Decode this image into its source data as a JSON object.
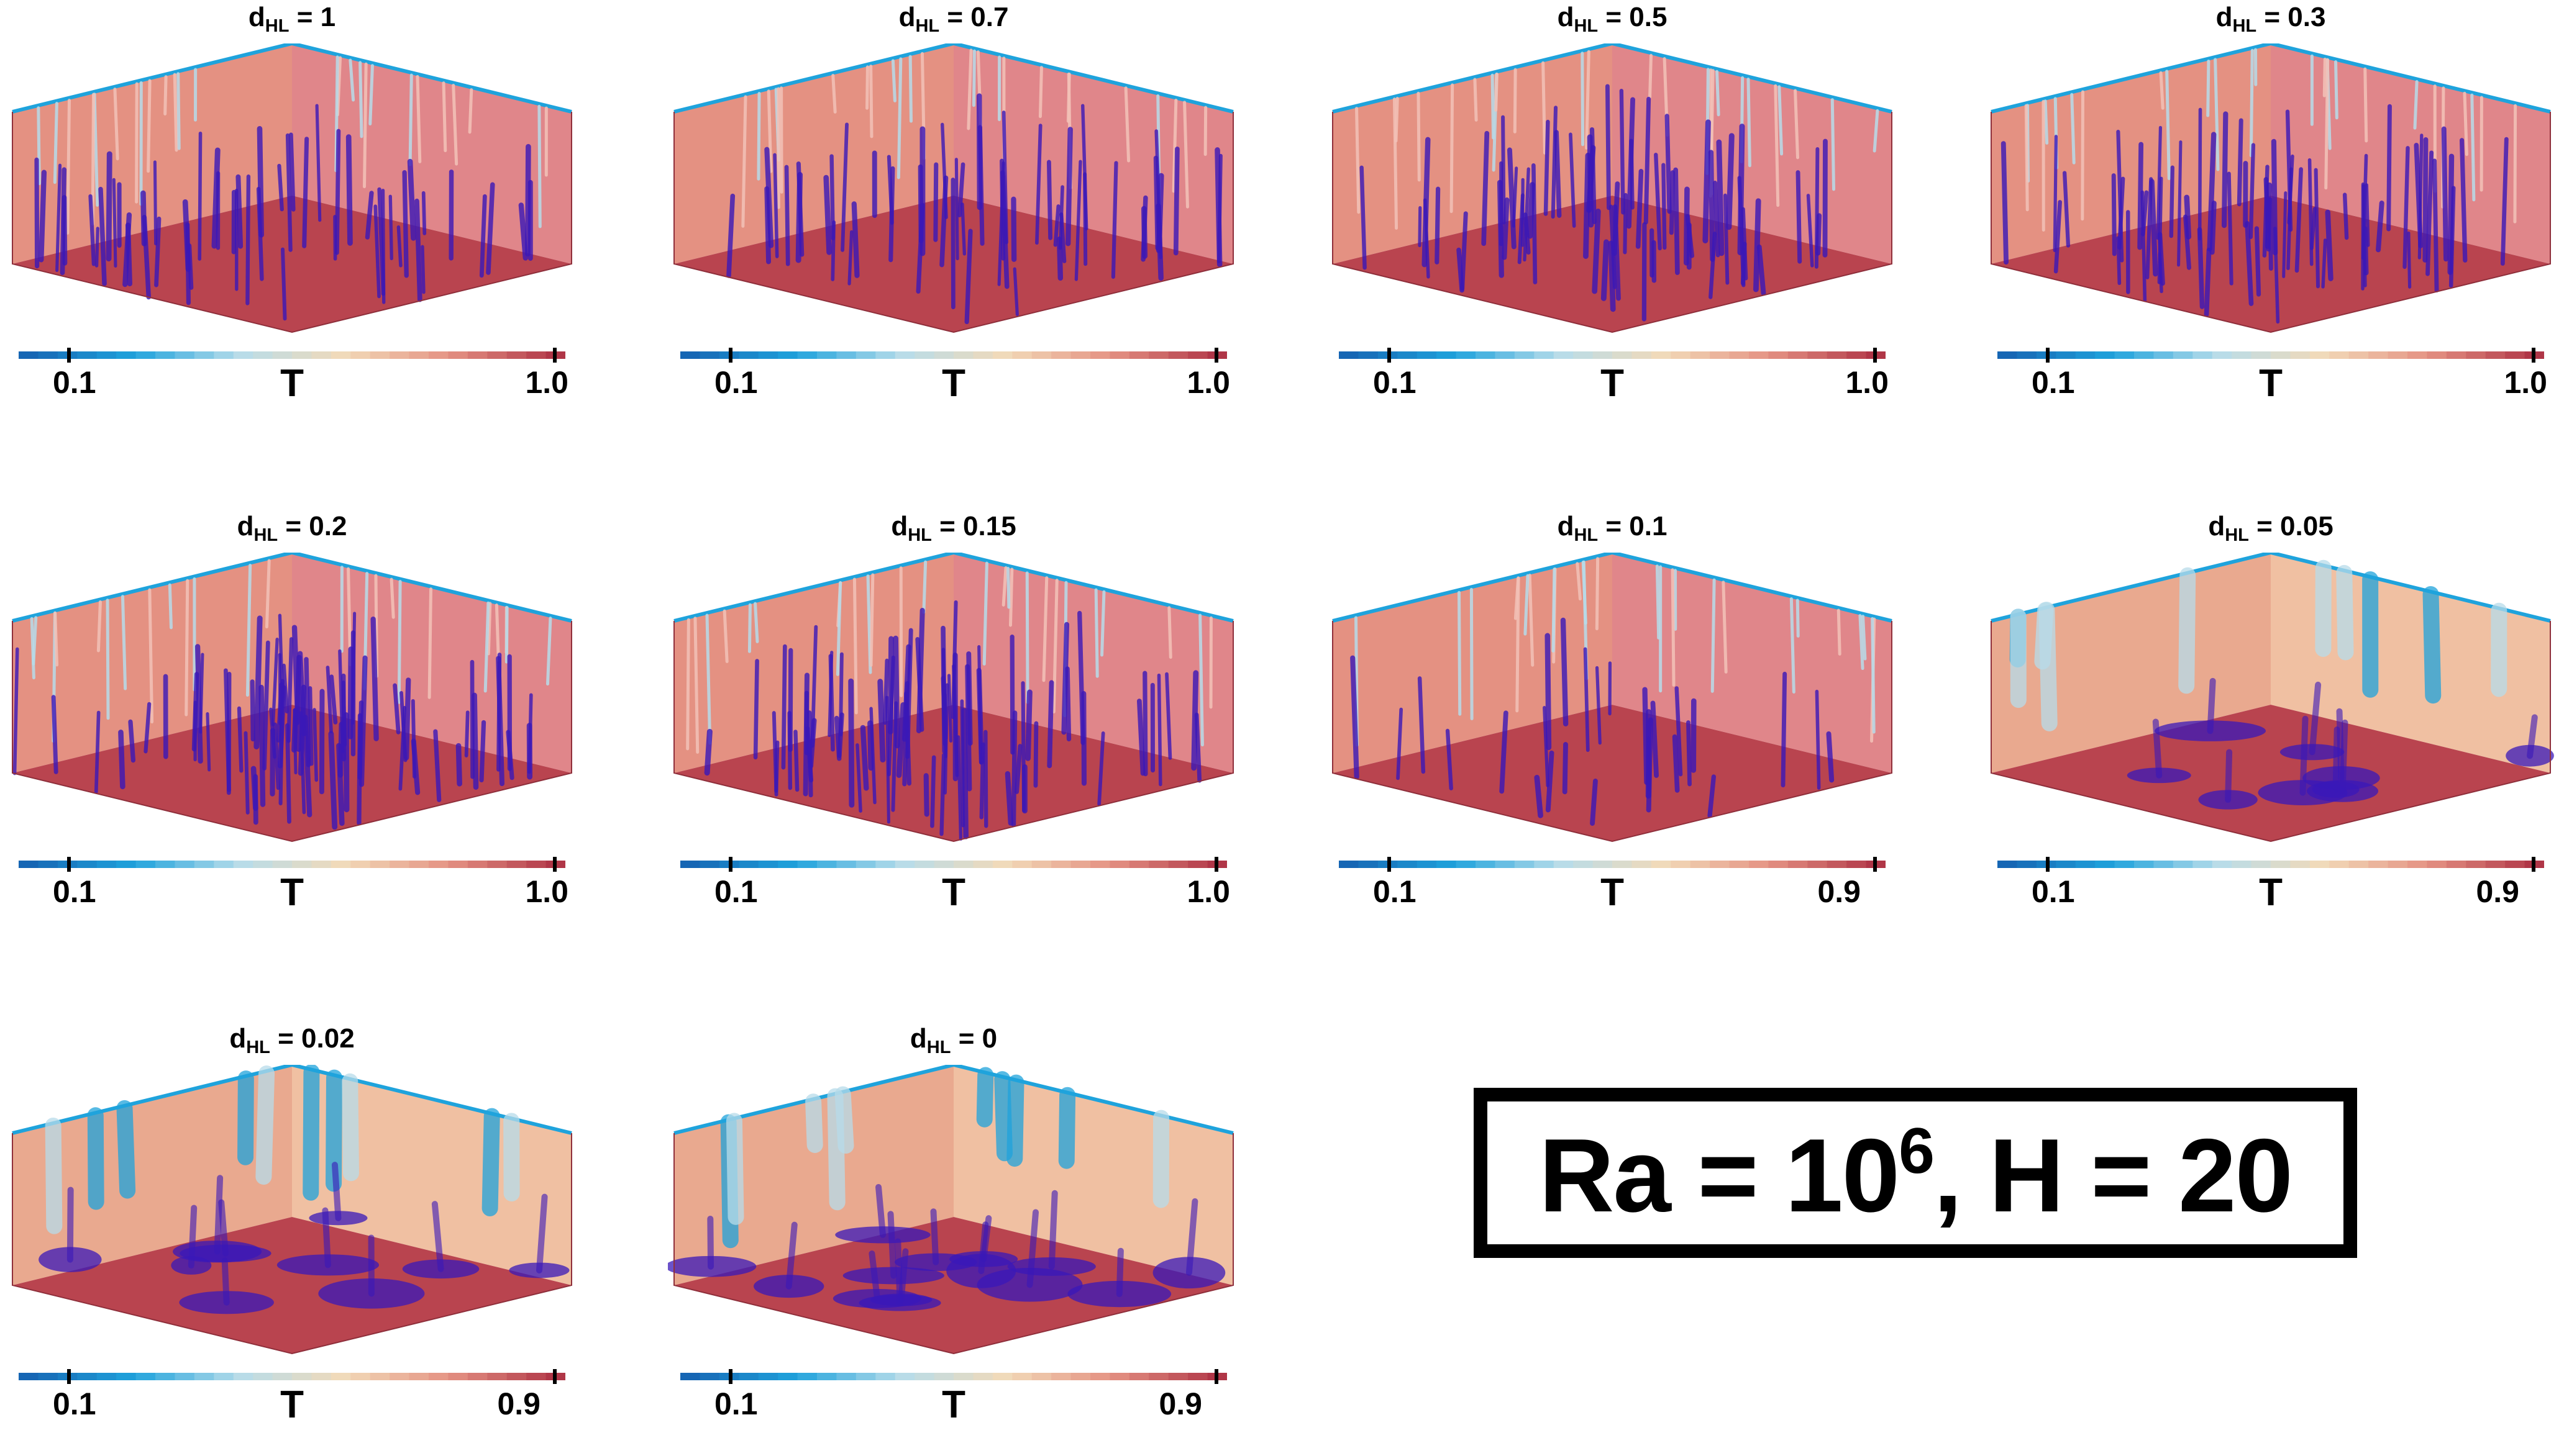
{
  "colors": {
    "cold": "#1666b4",
    "cool": "#1fa3dc",
    "light_blue": "#b7dcea",
    "neutral": "#f2dab8",
    "warm": "#e49182",
    "hot": "#b03647",
    "plume": "#3a18b8",
    "floor": "#b9444f"
  },
  "panels": [
    {
      "title_main": "d",
      "title_sub": "HL",
      "title_rest": " = 1",
      "cb_min": "0.1",
      "cb_max": "1.0",
      "cb_name": "T",
      "regime": "plumes-tall"
    },
    {
      "title_main": "d",
      "title_sub": "HL",
      "title_rest": " = 0.7",
      "cb_min": "0.1",
      "cb_max": "1.0",
      "cb_name": "T",
      "regime": "plumes-tall"
    },
    {
      "title_main": "d",
      "title_sub": "HL",
      "title_rest": " = 0.5",
      "cb_min": "0.1",
      "cb_max": "1.0",
      "cb_name": "T",
      "regime": "plumes-short"
    },
    {
      "title_main": "d",
      "title_sub": "HL",
      "title_rest": " = 0.3",
      "cb_min": "0.1",
      "cb_max": "1.0",
      "cb_name": "T",
      "regime": "plumes-short"
    },
    {
      "title_main": "d",
      "title_sub": "HL",
      "title_rest": " = 0.2",
      "cb_min": "0.1",
      "cb_max": "1.0",
      "cb_name": "T",
      "regime": "plumes-dense"
    },
    {
      "title_main": "d",
      "title_sub": "HL",
      "title_rest": " = 0.15",
      "cb_min": "0.1",
      "cb_max": "1.0",
      "cb_name": "T",
      "regime": "plumes-dense"
    },
    {
      "title_main": "d",
      "title_sub": "HL",
      "title_rest": " = 0.1",
      "cb_min": "0.1",
      "cb_max": "0.9",
      "cb_name": "T",
      "regime": "plumes-sparse"
    },
    {
      "title_main": "d",
      "title_sub": "HL",
      "title_rest": " = 0.05",
      "cb_min": "0.1",
      "cb_max": "0.9",
      "cb_name": "T",
      "regime": "sheets"
    },
    {
      "title_main": "d",
      "title_sub": "HL",
      "title_rest": " = 0.02",
      "cb_min": "0.1",
      "cb_max": "0.9",
      "cb_name": "T",
      "regime": "cold-walls"
    },
    {
      "title_main": "d",
      "title_sub": "HL",
      "title_rest": " = 0",
      "cb_min": "0.1",
      "cb_max": "0.9",
      "cb_name": "T",
      "regime": "blobs"
    }
  ],
  "info": {
    "prefix": "Ra = 10",
    "exponent": "6",
    "suffix": ", H = 20"
  }
}
